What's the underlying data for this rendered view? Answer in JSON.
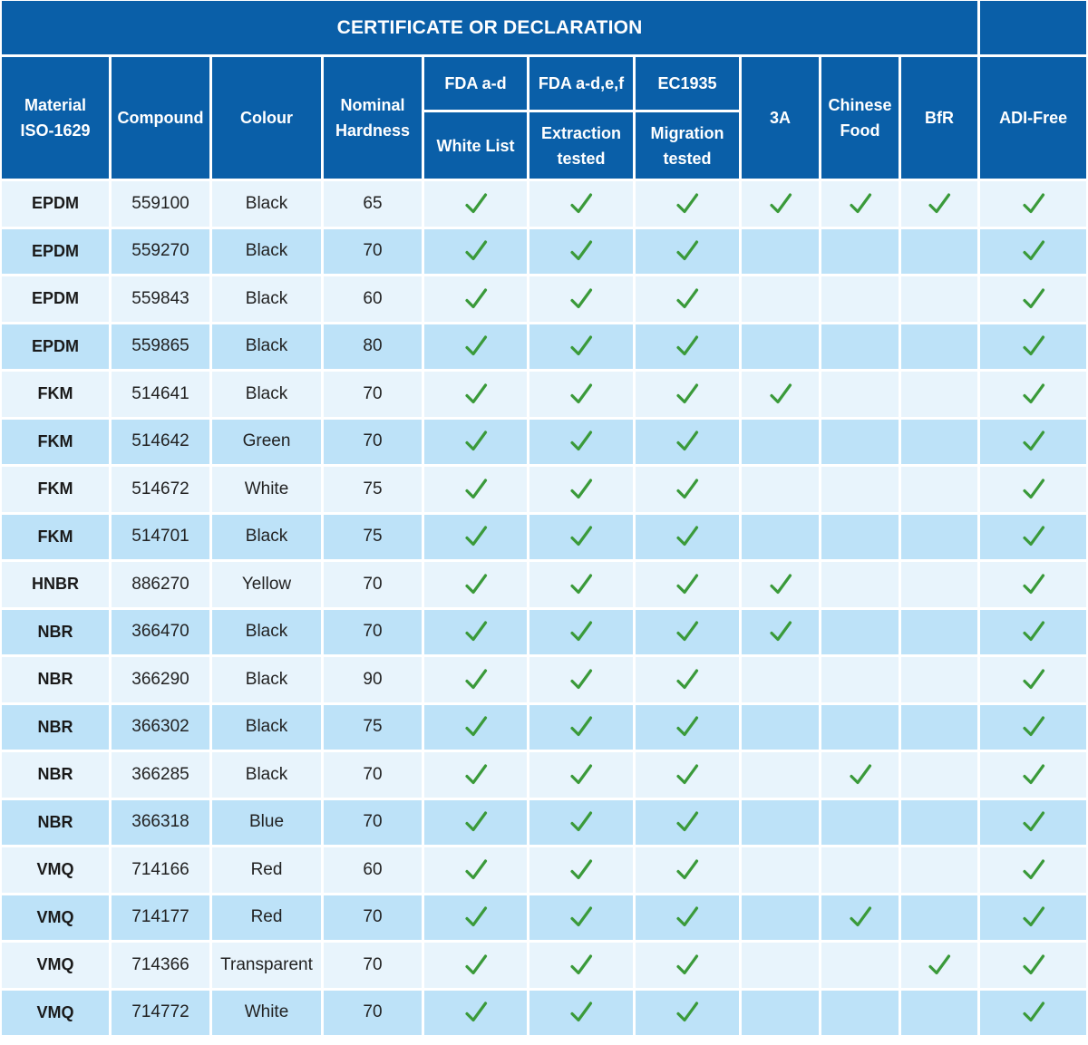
{
  "title": "CERTIFICATE OR DECLARATION",
  "headers": {
    "material": [
      "Material",
      "ISO-1629"
    ],
    "compound": "Compound",
    "colour": "Colour",
    "hardness": [
      "Nominal",
      "Hardness"
    ],
    "fda_ad": "FDA a-d",
    "white_list": "White List",
    "fda_adef": "FDA a-d,e,f",
    "extraction": [
      "Extraction",
      "tested"
    ],
    "ec1935": "EC1935",
    "migration": [
      "Migration",
      "tested"
    ],
    "a3": "3A",
    "chinese": [
      "Chinese",
      "Food"
    ],
    "bfr": "BfR",
    "adi": "ADI-Free"
  },
  "check_color": "#3a9a3a",
  "header_color": "#0a5fa8",
  "row_colors": [
    "#e8f4fc",
    "#bde2f8"
  ],
  "check_columns": [
    "fda_ad",
    "fda_adef",
    "ec1935",
    "a3",
    "chinese",
    "bfr",
    "adi"
  ],
  "rows": [
    {
      "material": "EPDM",
      "compound": "559100",
      "colour": "Black",
      "hardness": "65",
      "fda_ad": true,
      "fda_adef": true,
      "ec1935": true,
      "a3": true,
      "chinese": true,
      "bfr": true,
      "adi": true
    },
    {
      "material": "EPDM",
      "compound": "559270",
      "colour": "Black",
      "hardness": "70",
      "fda_ad": true,
      "fda_adef": true,
      "ec1935": true,
      "a3": false,
      "chinese": false,
      "bfr": false,
      "adi": true
    },
    {
      "material": "EPDM",
      "compound": "559843",
      "colour": "Black",
      "hardness": "60",
      "fda_ad": true,
      "fda_adef": true,
      "ec1935": true,
      "a3": false,
      "chinese": false,
      "bfr": false,
      "adi": true
    },
    {
      "material": "EPDM",
      "compound": "559865",
      "colour": "Black",
      "hardness": "80",
      "fda_ad": true,
      "fda_adef": true,
      "ec1935": true,
      "a3": false,
      "chinese": false,
      "bfr": false,
      "adi": true
    },
    {
      "material": "FKM",
      "compound": "514641",
      "colour": "Black",
      "hardness": "70",
      "fda_ad": true,
      "fda_adef": true,
      "ec1935": true,
      "a3": true,
      "chinese": false,
      "bfr": false,
      "adi": true
    },
    {
      "material": "FKM",
      "compound": "514642",
      "colour": "Green",
      "hardness": "70",
      "fda_ad": true,
      "fda_adef": true,
      "ec1935": true,
      "a3": false,
      "chinese": false,
      "bfr": false,
      "adi": true
    },
    {
      "material": "FKM",
      "compound": "514672",
      "colour": "White",
      "hardness": "75",
      "fda_ad": true,
      "fda_adef": true,
      "ec1935": true,
      "a3": false,
      "chinese": false,
      "bfr": false,
      "adi": true
    },
    {
      "material": "FKM",
      "compound": "514701",
      "colour": "Black",
      "hardness": "75",
      "fda_ad": true,
      "fda_adef": true,
      "ec1935": true,
      "a3": false,
      "chinese": false,
      "bfr": false,
      "adi": true
    },
    {
      "material": "HNBR",
      "compound": "886270",
      "colour": "Yellow",
      "hardness": "70",
      "fda_ad": true,
      "fda_adef": true,
      "ec1935": true,
      "a3": true,
      "chinese": false,
      "bfr": false,
      "adi": true
    },
    {
      "material": "NBR",
      "compound": "366470",
      "colour": "Black",
      "hardness": "70",
      "fda_ad": true,
      "fda_adef": true,
      "ec1935": true,
      "a3": true,
      "chinese": false,
      "bfr": false,
      "adi": true
    },
    {
      "material": "NBR",
      "compound": "366290",
      "colour": "Black",
      "hardness": "90",
      "fda_ad": true,
      "fda_adef": true,
      "ec1935": true,
      "a3": false,
      "chinese": false,
      "bfr": false,
      "adi": true
    },
    {
      "material": "NBR",
      "compound": "366302",
      "colour": "Black",
      "hardness": "75",
      "fda_ad": true,
      "fda_adef": true,
      "ec1935": true,
      "a3": false,
      "chinese": false,
      "bfr": false,
      "adi": true
    },
    {
      "material": "NBR",
      "compound": "366285",
      "colour": "Black",
      "hardness": "70",
      "fda_ad": true,
      "fda_adef": true,
      "ec1935": true,
      "a3": false,
      "chinese": true,
      "bfr": false,
      "adi": true
    },
    {
      "material": "NBR",
      "compound": "366318",
      "colour": "Blue",
      "hardness": "70",
      "fda_ad": true,
      "fda_adef": true,
      "ec1935": true,
      "a3": false,
      "chinese": false,
      "bfr": false,
      "adi": true
    },
    {
      "material": "VMQ",
      "compound": "714166",
      "colour": "Red",
      "hardness": "60",
      "fda_ad": true,
      "fda_adef": true,
      "ec1935": true,
      "a3": false,
      "chinese": false,
      "bfr": false,
      "adi": true
    },
    {
      "material": "VMQ",
      "compound": "714177",
      "colour": "Red",
      "hardness": "70",
      "fda_ad": true,
      "fda_adef": true,
      "ec1935": true,
      "a3": false,
      "chinese": true,
      "bfr": false,
      "adi": true
    },
    {
      "material": "VMQ",
      "compound": "714366",
      "colour": "Transparent",
      "hardness": "70",
      "fda_ad": true,
      "fda_adef": true,
      "ec1935": true,
      "a3": false,
      "chinese": false,
      "bfr": true,
      "adi": true
    },
    {
      "material": "VMQ",
      "compound": "714772",
      "colour": "White",
      "hardness": "70",
      "fda_ad": true,
      "fda_adef": true,
      "ec1935": true,
      "a3": false,
      "chinese": false,
      "bfr": false,
      "adi": true
    }
  ]
}
